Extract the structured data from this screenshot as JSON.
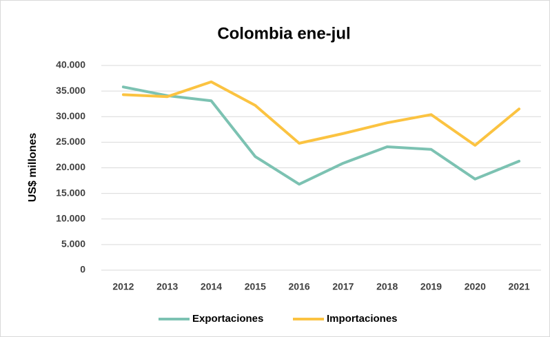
{
  "chart_data": {
    "type": "line",
    "title": "Colombia ene-jul",
    "y_label": "US$ millones",
    "categories": [
      "2012",
      "2013",
      "2014",
      "2015",
      "2016",
      "2017",
      "2018",
      "2019",
      "2020",
      "2021"
    ],
    "series": [
      {
        "name": "Exportaciones",
        "color": "#7cc2b2",
        "values": [
          35800,
          34100,
          33100,
          22200,
          16800,
          20900,
          24100,
          23600,
          17800,
          21300
        ]
      },
      {
        "name": "Importaciones",
        "color": "#fbc341",
        "values": [
          34300,
          33900,
          36800,
          32200,
          24800,
          26700,
          28800,
          30400,
          24400,
          31500
        ]
      }
    ],
    "ylim": [
      0,
      40000
    ],
    "yticks": [
      0,
      {
        "value": 5000,
        "label": "5.000"
      },
      {
        "value": 10000,
        "label": "10.000"
      },
      {
        "value": 15000,
        "label": "15.000"
      },
      {
        "value": 20000,
        "label": "20.000"
      },
      {
        "value": 25000,
        "label": "25.000"
      },
      {
        "value": 30000,
        "label": "30.000"
      },
      {
        "value": 35000,
        "label": "35.000"
      },
      {
        "value": 40000,
        "label": "40.000"
      }
    ],
    "grid": true,
    "legend": "bottom"
  }
}
